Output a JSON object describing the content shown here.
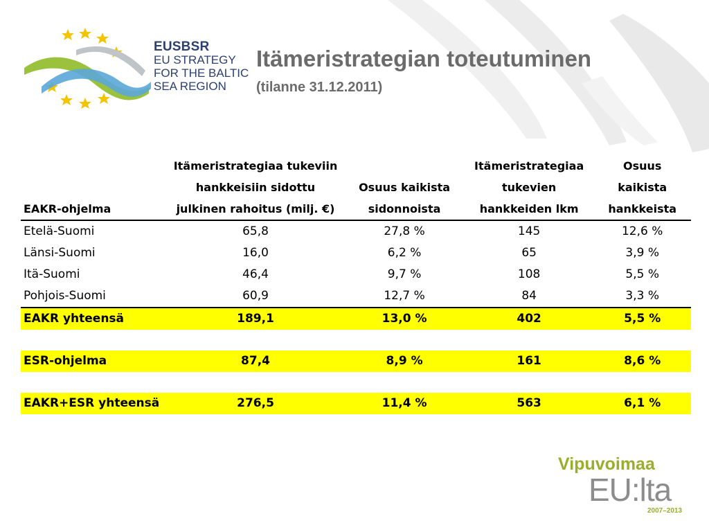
{
  "logo": {
    "acronym": "EUSBSR",
    "line1": "EU STRATEGY",
    "line2": "FOR THE BALTIC",
    "line3": "SEA REGION",
    "star_color": "#f5c400",
    "wave_colors": [
      "#9bc23c",
      "#2b3f72",
      "#5ba7d8"
    ]
  },
  "title": "Itämeristrategian toteutuminen",
  "subtitle": "(tilanne 31.12.2011)",
  "table": {
    "headers": [
      [
        "EAKR-ohjelma"
      ],
      [
        "Itämeristrategiaa tukeviin",
        "hankkeisiin sidottu",
        "julkinen rahoitus (milj. €)"
      ],
      [
        "Osuus kaikista",
        "sidonnoista"
      ],
      [
        "Itämeristrategiaa",
        "tukevien",
        "hankkeiden lkm"
      ],
      [
        "Osuus",
        "kaikista",
        "hankkeista"
      ]
    ],
    "rows": [
      [
        "Etelä-Suomi",
        "65,8",
        "27,8 %",
        "145",
        "12,6 %"
      ],
      [
        "Länsi-Suomi",
        "16,0",
        "6,2 %",
        "65",
        "3,9 %"
      ],
      [
        "Itä-Suomi",
        "46,4",
        "9,7 %",
        "108",
        "5,5 %"
      ],
      [
        "Pohjois-Suomi",
        "60,9",
        "12,7 %",
        "84",
        "3,3 %"
      ]
    ],
    "total_eakr": [
      "EAKR yhteensä",
      "189,1",
      "13,0 %",
      "402",
      "5,5 %"
    ],
    "esr": [
      "ESR-ohjelma",
      "87,4",
      "8,9 %",
      "161",
      "8,6 %"
    ],
    "total_all": [
      "EAKR+ESR yhteensä",
      "276,5",
      "11,4 %",
      "563",
      "6,1 %"
    ],
    "highlight_color": "#ffff00"
  },
  "footer_logo": {
    "line1": "Vipuvoimaa",
    "line2": "EU:lta",
    "years": "2007–2013"
  }
}
